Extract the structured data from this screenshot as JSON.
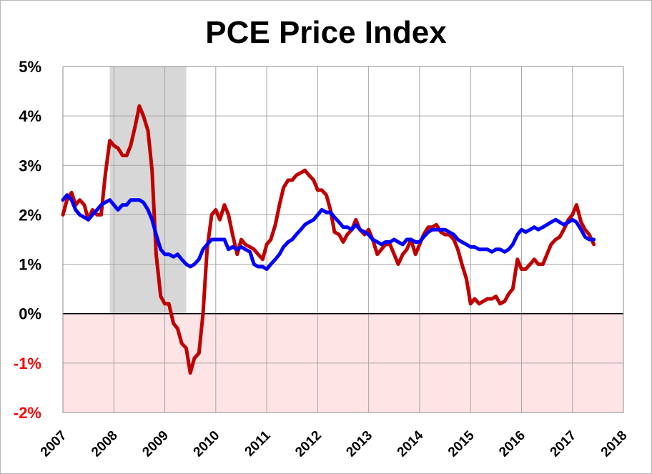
{
  "chart_data": {
    "type": "line",
    "title": "PCE Price Index",
    "xlabel": "",
    "ylabel": "",
    "x_ticks": [
      "2007",
      "2008",
      "2009",
      "2010",
      "2011",
      "2012",
      "2013",
      "2014",
      "2015",
      "2016",
      "2017",
      "2018"
    ],
    "y_ticks": [
      "-2%",
      "-1%",
      "0%",
      "1%",
      "2%",
      "3%",
      "4%",
      "5%"
    ],
    "xlim": [
      2007,
      2018
    ],
    "ylim": [
      -2,
      5
    ],
    "grid": true,
    "shaded_regions": [
      {
        "kind": "recession",
        "x_start": 2007.92,
        "x_end": 2009.42,
        "color": "#d3d3d3"
      },
      {
        "kind": "negative",
        "y_start": -2,
        "y_end": 0,
        "color": "#ffe4e6"
      }
    ],
    "series": [
      {
        "color": "#c00000",
        "points": [
          [
            2007.0,
            2.0
          ],
          [
            2007.08,
            2.3
          ],
          [
            2007.17,
            2.45
          ],
          [
            2007.25,
            2.2
          ],
          [
            2007.33,
            2.3
          ],
          [
            2007.42,
            2.2
          ],
          [
            2007.5,
            1.9
          ],
          [
            2007.58,
            2.1
          ],
          [
            2007.67,
            2.0
          ],
          [
            2007.75,
            2.0
          ],
          [
            2007.83,
            2.8
          ],
          [
            2007.92,
            3.5
          ],
          [
            2008.0,
            3.4
          ],
          [
            2008.08,
            3.35
          ],
          [
            2008.17,
            3.2
          ],
          [
            2008.25,
            3.2
          ],
          [
            2008.33,
            3.4
          ],
          [
            2008.42,
            3.8
          ],
          [
            2008.5,
            4.2
          ],
          [
            2008.58,
            4.0
          ],
          [
            2008.67,
            3.7
          ],
          [
            2008.75,
            2.9
          ],
          [
            2008.83,
            1.2
          ],
          [
            2008.92,
            0.35
          ],
          [
            2009.0,
            0.2
          ],
          [
            2009.08,
            0.2
          ],
          [
            2009.17,
            -0.2
          ],
          [
            2009.25,
            -0.3
          ],
          [
            2009.33,
            -0.6
          ],
          [
            2009.42,
            -0.7
          ],
          [
            2009.5,
            -1.2
          ],
          [
            2009.58,
            -0.9
          ],
          [
            2009.67,
            -0.8
          ],
          [
            2009.75,
            0.0
          ],
          [
            2009.83,
            1.3
          ],
          [
            2009.92,
            2.0
          ],
          [
            2010.0,
            2.1
          ],
          [
            2010.08,
            1.9
          ],
          [
            2010.17,
            2.2
          ],
          [
            2010.25,
            2.0
          ],
          [
            2010.33,
            1.6
          ],
          [
            2010.42,
            1.2
          ],
          [
            2010.5,
            1.5
          ],
          [
            2010.58,
            1.4
          ],
          [
            2010.67,
            1.35
          ],
          [
            2010.75,
            1.3
          ],
          [
            2010.83,
            1.2
          ],
          [
            2010.92,
            1.1
          ],
          [
            2011.0,
            1.4
          ],
          [
            2011.08,
            1.5
          ],
          [
            2011.17,
            1.8
          ],
          [
            2011.25,
            2.2
          ],
          [
            2011.33,
            2.55
          ],
          [
            2011.42,
            2.7
          ],
          [
            2011.5,
            2.7
          ],
          [
            2011.58,
            2.8
          ],
          [
            2011.67,
            2.85
          ],
          [
            2011.75,
            2.9
          ],
          [
            2011.83,
            2.8
          ],
          [
            2011.92,
            2.7
          ],
          [
            2012.0,
            2.5
          ],
          [
            2012.08,
            2.5
          ],
          [
            2012.17,
            2.4
          ],
          [
            2012.25,
            2.1
          ],
          [
            2012.33,
            1.65
          ],
          [
            2012.42,
            1.6
          ],
          [
            2012.5,
            1.45
          ],
          [
            2012.58,
            1.6
          ],
          [
            2012.67,
            1.7
          ],
          [
            2012.75,
            1.9
          ],
          [
            2012.83,
            1.7
          ],
          [
            2012.92,
            1.6
          ],
          [
            2013.0,
            1.7
          ],
          [
            2013.08,
            1.5
          ],
          [
            2013.17,
            1.2
          ],
          [
            2013.25,
            1.3
          ],
          [
            2013.33,
            1.4
          ],
          [
            2013.42,
            1.4
          ],
          [
            2013.5,
            1.2
          ],
          [
            2013.58,
            1.0
          ],
          [
            2013.67,
            1.2
          ],
          [
            2013.75,
            1.3
          ],
          [
            2013.83,
            1.5
          ],
          [
            2013.92,
            1.2
          ],
          [
            2014.0,
            1.4
          ],
          [
            2014.08,
            1.6
          ],
          [
            2014.17,
            1.75
          ],
          [
            2014.25,
            1.75
          ],
          [
            2014.33,
            1.8
          ],
          [
            2014.42,
            1.65
          ],
          [
            2014.5,
            1.6
          ],
          [
            2014.58,
            1.6
          ],
          [
            2014.67,
            1.5
          ],
          [
            2014.75,
            1.3
          ],
          [
            2014.83,
            1.0
          ],
          [
            2014.92,
            0.7
          ],
          [
            2015.0,
            0.2
          ],
          [
            2015.08,
            0.3
          ],
          [
            2015.17,
            0.2
          ],
          [
            2015.25,
            0.25
          ],
          [
            2015.33,
            0.3
          ],
          [
            2015.42,
            0.3
          ],
          [
            2015.5,
            0.35
          ],
          [
            2015.58,
            0.2
          ],
          [
            2015.67,
            0.25
          ],
          [
            2015.75,
            0.4
          ],
          [
            2015.83,
            0.5
          ],
          [
            2015.92,
            1.1
          ],
          [
            2016.0,
            0.9
          ],
          [
            2016.08,
            0.9
          ],
          [
            2016.17,
            1.0
          ],
          [
            2016.25,
            1.1
          ],
          [
            2016.33,
            1.0
          ],
          [
            2016.42,
            1.0
          ],
          [
            2016.5,
            1.2
          ],
          [
            2016.58,
            1.4
          ],
          [
            2016.67,
            1.5
          ],
          [
            2016.75,
            1.55
          ],
          [
            2016.83,
            1.7
          ],
          [
            2016.92,
            1.9
          ],
          [
            2017.0,
            2.0
          ],
          [
            2017.08,
            2.2
          ],
          [
            2017.17,
            1.85
          ],
          [
            2017.25,
            1.7
          ],
          [
            2017.33,
            1.6
          ],
          [
            2017.42,
            1.4
          ]
        ]
      },
      {
        "color": "#0000ff",
        "points": [
          [
            2007.0,
            2.3
          ],
          [
            2007.08,
            2.4
          ],
          [
            2007.17,
            2.3
          ],
          [
            2007.25,
            2.1
          ],
          [
            2007.33,
            2.0
          ],
          [
            2007.42,
            1.95
          ],
          [
            2007.5,
            1.9
          ],
          [
            2007.58,
            2.0
          ],
          [
            2007.67,
            2.1
          ],
          [
            2007.75,
            2.2
          ],
          [
            2007.83,
            2.25
          ],
          [
            2007.92,
            2.3
          ],
          [
            2008.0,
            2.2
          ],
          [
            2008.08,
            2.1
          ],
          [
            2008.17,
            2.2
          ],
          [
            2008.25,
            2.2
          ],
          [
            2008.33,
            2.3
          ],
          [
            2008.42,
            2.3
          ],
          [
            2008.5,
            2.3
          ],
          [
            2008.58,
            2.25
          ],
          [
            2008.67,
            2.1
          ],
          [
            2008.75,
            1.9
          ],
          [
            2008.83,
            1.6
          ],
          [
            2008.92,
            1.3
          ],
          [
            2009.0,
            1.2
          ],
          [
            2009.08,
            1.2
          ],
          [
            2009.17,
            1.15
          ],
          [
            2009.25,
            1.2
          ],
          [
            2009.33,
            1.1
          ],
          [
            2009.42,
            1.0
          ],
          [
            2009.5,
            0.95
          ],
          [
            2009.58,
            1.0
          ],
          [
            2009.67,
            1.1
          ],
          [
            2009.75,
            1.3
          ],
          [
            2009.83,
            1.4
          ],
          [
            2009.92,
            1.5
          ],
          [
            2010.0,
            1.5
          ],
          [
            2010.08,
            1.5
          ],
          [
            2010.17,
            1.5
          ],
          [
            2010.25,
            1.3
          ],
          [
            2010.33,
            1.35
          ],
          [
            2010.42,
            1.3
          ],
          [
            2010.5,
            1.35
          ],
          [
            2010.58,
            1.3
          ],
          [
            2010.67,
            1.25
          ],
          [
            2010.75,
            1.0
          ],
          [
            2010.83,
            0.95
          ],
          [
            2010.92,
            0.95
          ],
          [
            2011.0,
            0.9
          ],
          [
            2011.08,
            1.0
          ],
          [
            2011.17,
            1.1
          ],
          [
            2011.25,
            1.2
          ],
          [
            2011.33,
            1.35
          ],
          [
            2011.42,
            1.45
          ],
          [
            2011.5,
            1.5
          ],
          [
            2011.58,
            1.6
          ],
          [
            2011.67,
            1.7
          ],
          [
            2011.75,
            1.8
          ],
          [
            2011.83,
            1.85
          ],
          [
            2011.92,
            1.9
          ],
          [
            2012.0,
            2.0
          ],
          [
            2012.08,
            2.1
          ],
          [
            2012.17,
            2.05
          ],
          [
            2012.25,
            2.05
          ],
          [
            2012.33,
            1.95
          ],
          [
            2012.42,
            1.85
          ],
          [
            2012.5,
            1.75
          ],
          [
            2012.58,
            1.75
          ],
          [
            2012.67,
            1.7
          ],
          [
            2012.75,
            1.8
          ],
          [
            2012.83,
            1.7
          ],
          [
            2012.92,
            1.65
          ],
          [
            2013.0,
            1.6
          ],
          [
            2013.08,
            1.5
          ],
          [
            2013.17,
            1.45
          ],
          [
            2013.25,
            1.4
          ],
          [
            2013.33,
            1.45
          ],
          [
            2013.42,
            1.45
          ],
          [
            2013.5,
            1.5
          ],
          [
            2013.58,
            1.45
          ],
          [
            2013.67,
            1.4
          ],
          [
            2013.75,
            1.5
          ],
          [
            2013.83,
            1.5
          ],
          [
            2013.92,
            1.45
          ],
          [
            2014.0,
            1.45
          ],
          [
            2014.08,
            1.55
          ],
          [
            2014.17,
            1.65
          ],
          [
            2014.25,
            1.7
          ],
          [
            2014.33,
            1.7
          ],
          [
            2014.42,
            1.7
          ],
          [
            2014.5,
            1.7
          ],
          [
            2014.58,
            1.65
          ],
          [
            2014.67,
            1.6
          ],
          [
            2014.75,
            1.5
          ],
          [
            2014.83,
            1.45
          ],
          [
            2014.92,
            1.4
          ],
          [
            2015.0,
            1.35
          ],
          [
            2015.08,
            1.35
          ],
          [
            2015.17,
            1.3
          ],
          [
            2015.25,
            1.3
          ],
          [
            2015.33,
            1.3
          ],
          [
            2015.42,
            1.25
          ],
          [
            2015.5,
            1.3
          ],
          [
            2015.58,
            1.3
          ],
          [
            2015.67,
            1.25
          ],
          [
            2015.75,
            1.3
          ],
          [
            2015.83,
            1.4
          ],
          [
            2015.92,
            1.6
          ],
          [
            2016.0,
            1.7
          ],
          [
            2016.08,
            1.65
          ],
          [
            2016.17,
            1.7
          ],
          [
            2016.25,
            1.75
          ],
          [
            2016.33,
            1.7
          ],
          [
            2016.42,
            1.75
          ],
          [
            2016.5,
            1.8
          ],
          [
            2016.58,
            1.85
          ],
          [
            2016.67,
            1.9
          ],
          [
            2016.75,
            1.85
          ],
          [
            2016.83,
            1.8
          ],
          [
            2016.92,
            1.85
          ],
          [
            2017.0,
            1.9
          ],
          [
            2017.08,
            1.85
          ],
          [
            2017.17,
            1.7
          ],
          [
            2017.25,
            1.55
          ],
          [
            2017.33,
            1.5
          ],
          [
            2017.42,
            1.5
          ]
        ]
      }
    ]
  }
}
